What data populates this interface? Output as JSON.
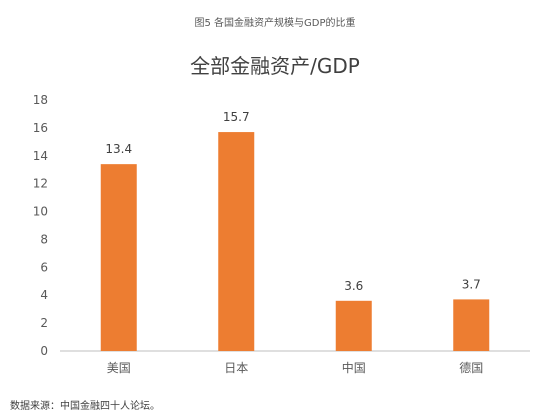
{
  "figure_caption": "图5 各国金融资产规模与GDP的比重",
  "source_note": "数据来源：中国金融四十人论坛。",
  "colors": {
    "bar": "#ED7D31",
    "axis": "#BFBFBF"
  },
  "chart_data": {
    "type": "bar",
    "title": "全部金融资产/GDP",
    "xlabel": "",
    "ylabel": "",
    "categories": [
      "美国",
      "日本",
      "中国",
      "德国"
    ],
    "values": [
      13.4,
      15.7,
      3.6,
      3.7
    ],
    "data_labels": [
      "13.4",
      "15.7",
      "3.6",
      "3.7"
    ],
    "ylim": [
      0,
      18
    ],
    "yticks": [
      0,
      2,
      4,
      6,
      8,
      10,
      12,
      14,
      16,
      18
    ],
    "grid": false,
    "legend": "none"
  }
}
